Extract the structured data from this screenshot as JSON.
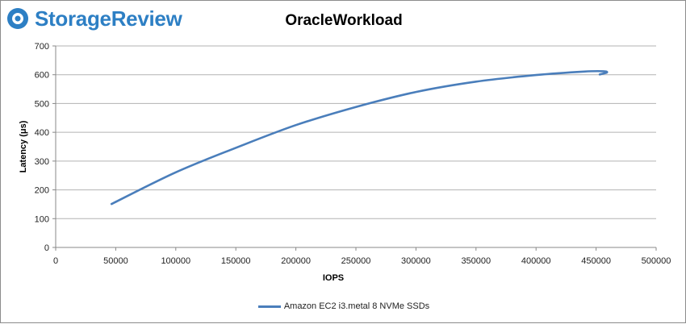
{
  "logo": {
    "text": "StorageReview"
  },
  "colors": {
    "series": "#4a7ebb",
    "grid": "#b3b3b3",
    "brand": "#2d7fc4"
  },
  "chart_data": {
    "type": "line",
    "title": "OracleWorkload",
    "xlabel": "IOPS",
    "ylabel": "Latency (μs)",
    "xlim": [
      0,
      500000
    ],
    "ylim": [
      0,
      700
    ],
    "x_ticks": [
      "0",
      "50000",
      "100000",
      "150000",
      "200000",
      "250000",
      "300000",
      "350000",
      "400000",
      "450000",
      "500000"
    ],
    "y_ticks": [
      "0",
      "100",
      "200",
      "300",
      "400",
      "500",
      "600",
      "700"
    ],
    "grid": "horizontal",
    "legend_position": "bottom",
    "series": [
      {
        "name": "Amazon EC2 i3.metal 8 NVMe SSDs",
        "x": [
          46500,
          100000,
          150000,
          200000,
          250000,
          300000,
          350000,
          400000,
          440000,
          456000,
          459000,
          453000
        ],
        "y": [
          151,
          261,
          346,
          425,
          488,
          540,
          576,
          599,
          611,
          612,
          608,
          601
        ]
      }
    ]
  }
}
